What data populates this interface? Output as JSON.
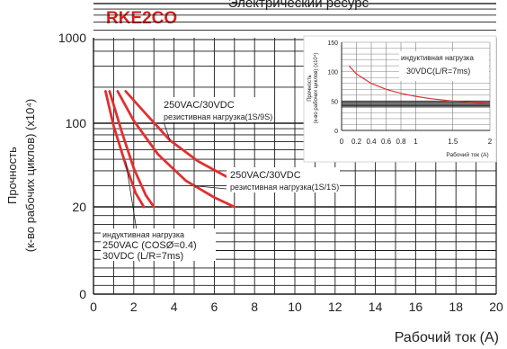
{
  "header": {
    "page_title": "Электрический ресурс",
    "model": "RKE2CO"
  },
  "colors": {
    "curve": "#e03030",
    "grid": "#1a1a1a",
    "model_title": "#d62020"
  },
  "chart_data": [
    {
      "type": "line",
      "xlabel": "Рабочий ток (A)",
      "ylabel_line1": "Прочность",
      "ylabel_line2": "(к-во рабочих циклов) (x10⁴)",
      "xlim": [
        0,
        20
      ],
      "x_ticks": [
        0,
        2,
        4,
        6,
        8,
        10,
        12,
        14,
        16,
        18,
        20
      ],
      "x_tick_labels": [
        "0",
        "2",
        "4",
        "6",
        "8",
        "10",
        "12",
        "14",
        "16",
        "18",
        "20"
      ],
      "y_ticks": [
        "0",
        "20",
        "100",
        "1000"
      ],
      "grid": true,
      "series": [
        {
          "x": [
            1.6,
            2.6,
            3.8,
            5.2,
            7.0,
            8.0
          ],
          "y": [
            185,
            120,
            72,
            48,
            33,
            30
          ]
        },
        {
          "x": [
            1.2,
            2.0,
            3.2,
            4.6,
            6.0,
            7.0
          ],
          "y": [
            185,
            105,
            55,
            33,
            24,
            20
          ]
        },
        {
          "x": [
            0.8,
            1.4,
            2.0,
            2.6,
            3.0
          ],
          "y": [
            185,
            85,
            42,
            25,
            20
          ]
        },
        {
          "x": [
            0.6,
            1.0,
            1.6,
            2.1,
            2.5
          ],
          "y": [
            185,
            95,
            45,
            26,
            20
          ]
        }
      ],
      "annotations": [
        {
          "line1": "250VAC/30VDC",
          "line2": "резистивная нагрузка(1S/9S)"
        },
        {
          "line1": "250VAC/30VDC",
          "line2": "резистивная нагрузка(1S/1S)"
        },
        {
          "line1": "индуктивная нагрузка",
          "line2": "250VAC (COSØ=0.4)",
          "line3": "30VDC (L/R=7ms)"
        }
      ]
    },
    {
      "type": "line",
      "xlabel": "Рабочий ток (A)",
      "ylabel_line1": "Прочность",
      "ylabel_line2": "(к-во рабочих циклов) (x10⁴)",
      "xlim": [
        0,
        2
      ],
      "ylim": [
        0,
        150
      ],
      "x_tick_labels": [
        "0",
        "0.2",
        "0.4",
        "0.6",
        "0.8",
        "1",
        "1.5",
        "2"
      ],
      "y_tick_labels": [
        "0",
        "50",
        "100",
        "150"
      ],
      "grid": true,
      "series": [
        {
          "x": [
            0.1,
            0.2,
            0.4,
            0.6,
            0.8,
            1.0,
            1.2,
            1.5,
            1.8,
            2.0
          ],
          "y": [
            110,
            96,
            80,
            70,
            63,
            58,
            54,
            50,
            48,
            47
          ]
        }
      ],
      "annotations": [
        {
          "line1": "индуктивная нагрузка",
          "line2": "30VDC(L/R=7ms)"
        }
      ]
    }
  ]
}
